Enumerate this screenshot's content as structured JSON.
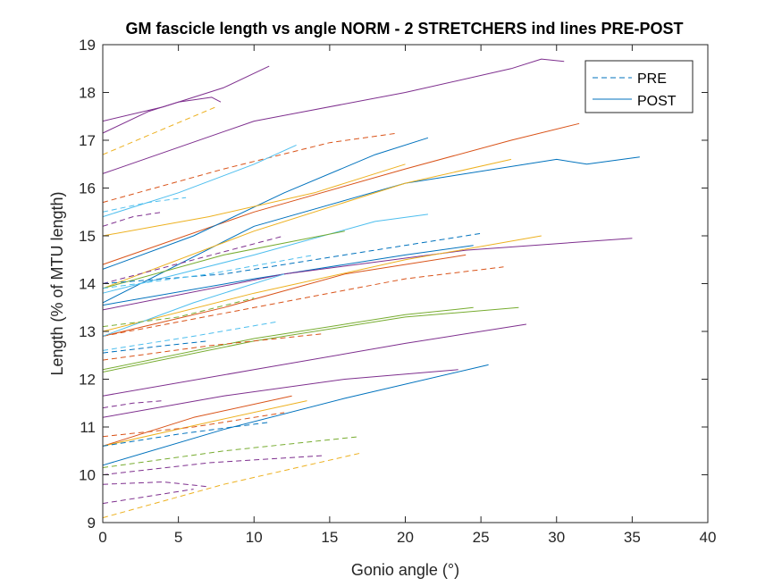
{
  "chart_data": {
    "type": "line",
    "title": "GM fascicle length vs angle NORM - 2 STRETCHERS ind lines PRE-POST",
    "xlabel": "Gonio angle (°)",
    "ylabel": "Length (% of MTU length)",
    "xlim": [
      0,
      40
    ],
    "ylim": [
      9,
      19
    ],
    "xticks": [
      "0",
      "5",
      "10",
      "15",
      "20",
      "25",
      "30",
      "35",
      "40"
    ],
    "yticks": [
      "9",
      "10",
      "11",
      "12",
      "13",
      "14",
      "15",
      "16",
      "17",
      "18",
      "19"
    ],
    "grid": false,
    "legend_position": "top-right",
    "legend": [
      {
        "label": "PRE",
        "style": "dashed",
        "color": "#0072bd"
      },
      {
        "label": "POST",
        "style": "solid",
        "color": "#0072bd"
      }
    ],
    "series": [
      {
        "color": "#7e2f8e",
        "style": "solid",
        "x": [
          0,
          4,
          8,
          11
        ],
        "y": [
          17.4,
          17.7,
          18.1,
          18.55
        ]
      },
      {
        "color": "#7e2f8e",
        "style": "solid",
        "x": [
          0,
          3,
          5,
          7.2,
          7.8
        ],
        "y": [
          17.15,
          17.6,
          17.8,
          17.9,
          17.8
        ]
      },
      {
        "color": "#7e2f8e",
        "style": "solid",
        "x": [
          0,
          10,
          20,
          27,
          29,
          30.5
        ],
        "y": [
          16.3,
          17.4,
          18.0,
          18.5,
          18.7,
          18.65
        ]
      },
      {
        "color": "#edb120",
        "style": "dashed",
        "x": [
          0,
          3,
          7.5
        ],
        "y": [
          16.7,
          17.1,
          17.7
        ]
      },
      {
        "color": "#d95319",
        "style": "dashed",
        "x": [
          0,
          8,
          15,
          19.5
        ],
        "y": [
          15.7,
          16.4,
          16.95,
          17.15
        ]
      },
      {
        "color": "#d95319",
        "style": "solid",
        "x": [
          0,
          10,
          20,
          27,
          31.5
        ],
        "y": [
          14.4,
          15.5,
          16.4,
          17.0,
          17.35
        ]
      },
      {
        "color": "#4dbeee",
        "style": "solid",
        "x": [
          0,
          5,
          10,
          12.8
        ],
        "y": [
          15.4,
          15.9,
          16.5,
          16.9
        ]
      },
      {
        "color": "#4dbeee",
        "style": "dashed",
        "x": [
          0,
          3,
          5.5
        ],
        "y": [
          15.5,
          15.7,
          15.8
        ]
      },
      {
        "color": "#0072bd",
        "style": "solid",
        "x": [
          0,
          6,
          12,
          18,
          21.5
        ],
        "y": [
          14.3,
          15.0,
          15.9,
          16.7,
          17.05
        ]
      },
      {
        "color": "#7e2f8e",
        "style": "dashed",
        "x": [
          0,
          2,
          4
        ],
        "y": [
          15.2,
          15.4,
          15.5
        ]
      },
      {
        "color": "#edb120",
        "style": "solid",
        "x": [
          0,
          7,
          14,
          20
        ],
        "y": [
          15.0,
          15.4,
          15.9,
          16.5
        ]
      },
      {
        "color": "#0072bd",
        "style": "solid",
        "x": [
          0,
          10,
          20,
          30,
          32,
          35.5
        ],
        "y": [
          13.6,
          15.2,
          16.1,
          16.6,
          16.5,
          16.65
        ]
      },
      {
        "color": "#edb120",
        "style": "solid",
        "x": [
          0,
          10,
          20,
          27
        ],
        "y": [
          13.9,
          15.1,
          16.1,
          16.6
        ]
      },
      {
        "color": "#4dbeee",
        "style": "solid",
        "x": [
          0,
          10,
          18,
          21.5
        ],
        "y": [
          13.8,
          14.6,
          15.3,
          15.45
        ]
      },
      {
        "color": "#77ac30",
        "style": "solid",
        "x": [
          0,
          8,
          16
        ],
        "y": [
          13.9,
          14.6,
          15.1
        ]
      },
      {
        "color": "#7e2f8e",
        "style": "dashed",
        "x": [
          0,
          6,
          12
        ],
        "y": [
          14.0,
          14.5,
          15.0
        ]
      },
      {
        "color": "#0072bd",
        "style": "dashed",
        "x": [
          0,
          8,
          16,
          25
        ],
        "y": [
          14.0,
          14.2,
          14.6,
          15.05
        ]
      },
      {
        "color": "#0072bd",
        "style": "solid",
        "x": [
          0,
          10,
          20,
          24.5
        ],
        "y": [
          13.55,
          14.1,
          14.6,
          14.8
        ]
      },
      {
        "color": "#4dbeee",
        "style": "dashed",
        "x": [
          0,
          7,
          14
        ],
        "y": [
          13.9,
          14.2,
          14.6
        ]
      },
      {
        "color": "#7e2f8e",
        "style": "solid",
        "x": [
          0,
          12,
          24,
          35
        ],
        "y": [
          13.45,
          14.2,
          14.7,
          14.95
        ]
      },
      {
        "color": "#edb120",
        "style": "solid",
        "x": [
          0,
          10,
          20,
          29
        ],
        "y": [
          13.0,
          13.8,
          14.5,
          15.0
        ]
      },
      {
        "color": "#d95319",
        "style": "solid",
        "x": [
          0,
          8,
          16,
          24
        ],
        "y": [
          12.9,
          13.5,
          14.2,
          14.6
        ]
      },
      {
        "color": "#d95319",
        "style": "dashed",
        "x": [
          0,
          10,
          20,
          26.5
        ],
        "y": [
          12.9,
          13.5,
          14.1,
          14.35
        ]
      },
      {
        "color": "#4dbeee",
        "style": "solid",
        "x": [
          0,
          6,
          12
        ],
        "y": [
          12.9,
          13.6,
          14.2
        ]
      },
      {
        "color": "#77ac30",
        "style": "dashed",
        "x": [
          0,
          5,
          10
        ],
        "y": [
          13.1,
          13.3,
          13.7
        ]
      },
      {
        "color": "#4dbeee",
        "style": "dashed",
        "x": [
          0,
          6,
          11.5
        ],
        "y": [
          12.6,
          12.9,
          13.2
        ]
      },
      {
        "color": "#0072bd",
        "style": "dashed",
        "x": [
          0,
          4,
          7
        ],
        "y": [
          12.55,
          12.7,
          12.8
        ]
      },
      {
        "color": "#77ac30",
        "style": "solid",
        "x": [
          0,
          10,
          20,
          27.5
        ],
        "y": [
          12.15,
          12.8,
          13.3,
          13.5
        ]
      },
      {
        "color": "#77ac30",
        "style": "solid",
        "x": [
          0,
          10,
          20,
          24.5
        ],
        "y": [
          12.2,
          12.85,
          13.35,
          13.5
        ]
      },
      {
        "color": "#d95319",
        "style": "dashed",
        "x": [
          0,
          7,
          14.5
        ],
        "y": [
          12.4,
          12.7,
          12.95
        ]
      },
      {
        "color": "#7e2f8e",
        "style": "solid",
        "x": [
          0,
          10,
          20,
          28
        ],
        "y": [
          11.65,
          12.2,
          12.75,
          13.15
        ]
      },
      {
        "color": "#7e2f8e",
        "style": "solid",
        "x": [
          0,
          8,
          16,
          23.5
        ],
        "y": [
          11.2,
          11.65,
          12.0,
          12.2
        ]
      },
      {
        "color": "#7e2f8e",
        "style": "dashed",
        "x": [
          0,
          2,
          4
        ],
        "y": [
          11.4,
          11.5,
          11.55
        ]
      },
      {
        "color": "#0072bd",
        "style": "solid",
        "x": [
          0,
          8,
          16,
          25.5
        ],
        "y": [
          10.2,
          10.95,
          11.6,
          12.3
        ]
      },
      {
        "color": "#d95319",
        "style": "solid",
        "x": [
          0,
          6,
          12.5
        ],
        "y": [
          10.6,
          11.2,
          11.65
        ]
      },
      {
        "color": "#edb120",
        "style": "solid",
        "x": [
          0,
          7,
          13.5
        ],
        "y": [
          10.6,
          11.1,
          11.55
        ]
      },
      {
        "color": "#d95319",
        "style": "dashed",
        "x": [
          0,
          6,
          12
        ],
        "y": [
          10.8,
          11.0,
          11.3
        ]
      },
      {
        "color": "#0072bd",
        "style": "dashed",
        "x": [
          0,
          5,
          11
        ],
        "y": [
          10.6,
          10.85,
          11.1
        ]
      },
      {
        "color": "#77ac30",
        "style": "dashed",
        "x": [
          0,
          8,
          17
        ],
        "y": [
          10.15,
          10.5,
          10.8
        ]
      },
      {
        "color": "#7e2f8e",
        "style": "dashed",
        "x": [
          0,
          7,
          14.5
        ],
        "y": [
          10.0,
          10.25,
          10.4
        ]
      },
      {
        "color": "#7e2f8e",
        "style": "dashed",
        "x": [
          0,
          4,
          7
        ],
        "y": [
          9.8,
          9.85,
          9.75
        ]
      },
      {
        "color": "#7e2f8e",
        "style": "dashed",
        "x": [
          0,
          3,
          6
        ],
        "y": [
          9.4,
          9.55,
          9.7
        ]
      },
      {
        "color": "#edb120",
        "style": "dashed",
        "x": [
          0,
          8,
          17
        ],
        "y": [
          9.1,
          9.8,
          10.45
        ]
      }
    ]
  }
}
